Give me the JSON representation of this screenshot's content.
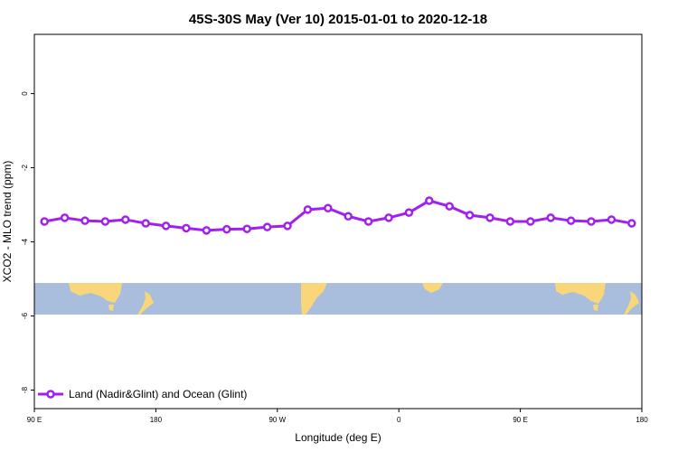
{
  "chart_data": {
    "type": "line",
    "title": "45S-30S May (Ver 10)   2015-01-01 to 2020-12-18",
    "x_label": "Longitude (deg E)",
    "y_label": "XCO2 - MLO trend (ppm)",
    "x": [
      97.5,
      112.5,
      127.5,
      142.5,
      157.5,
      172.5,
      187.5,
      202.5,
      217.5,
      232.5,
      247.5,
      262.5,
      277.5,
      292.5,
      307.5,
      322.5,
      337.5,
      352.5,
      367.5,
      382.5,
      397.5,
      412.5,
      427.5,
      442.5,
      457.5,
      472.5,
      487.5,
      502.5,
      517.5,
      532.5
    ],
    "series": [
      {
        "name": "Land (Nadir&Glint) and Ocean (Glint)",
        "color": "#a020f0",
        "values": [
          -3.45,
          -3.35,
          -3.43,
          -3.45,
          -3.4,
          -3.5,
          -3.57,
          -3.63,
          -3.69,
          -3.66,
          -3.65,
          -3.6,
          -3.57,
          -3.13,
          -3.09,
          -3.31,
          -3.45,
          -3.35,
          -3.21,
          -2.89,
          -3.04,
          -3.28,
          -3.35,
          -3.45,
          -3.45,
          -3.35,
          -3.43,
          -3.45,
          -3.4,
          -3.5
        ]
      }
    ],
    "xlim": [
      90,
      540
    ],
    "xticks": [
      {
        "value": 90,
        "label": "90 E"
      },
      180,
      {
        "value": 270,
        "label": "90 W"
      },
      {
        "value": 360,
        "label": "0"
      },
      {
        "value": 450,
        "label": "90 E"
      },
      {
        "value": 540,
        "label": "180"
      }
    ],
    "ylim": [
      -8.5,
      1.6
    ],
    "yticks": [
      0,
      -2,
      -4,
      -6,
      -8
    ],
    "legend": "bottom-left"
  }
}
